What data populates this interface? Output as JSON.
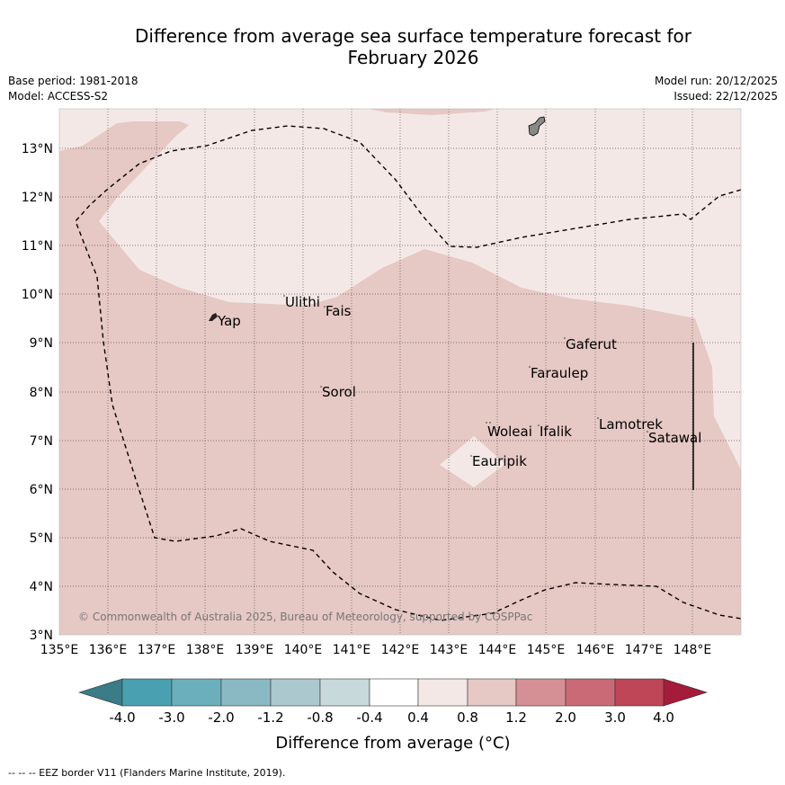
{
  "header": {
    "title_line1": "Difference from average sea surface temperature forecast for",
    "title_line2": "February 2026",
    "base_period": "Base period: 1981-2018",
    "model": "Model: ACCESS-S2",
    "model_run": "Model run: 20/12/2025",
    "issued": "Issued: 22/12/2025"
  },
  "map": {
    "lon_labels": [
      "135°E",
      "136°E",
      "137°E",
      "138°E",
      "139°E",
      "140°E",
      "141°E",
      "142°E",
      "143°E",
      "144°E",
      "145°E",
      "146°E",
      "147°E",
      "148°E"
    ],
    "lat_labels": [
      "13°N",
      "12°N",
      "11°N",
      "10°N",
      "9°N",
      "8°N",
      "7°N",
      "6°N",
      "5°N",
      "4°N",
      "3°N"
    ],
    "places": [
      {
        "name": "Ulithi"
      },
      {
        "name": "Fais"
      },
      {
        "name": "Yap"
      },
      {
        "name": "Gaferut"
      },
      {
        "name": "Faraulep"
      },
      {
        "name": "Sorol"
      },
      {
        "name": "Lamotrek"
      },
      {
        "name": "Satawal"
      },
      {
        "name": "Woleai"
      },
      {
        "name": "Ifalik"
      },
      {
        "name": "Eauripik"
      }
    ],
    "copyright": "© Commonwealth of Australia 2025, Bureau of Meteorology, supported by COSPPac",
    "colors": {
      "band_0_4_0_8": "#f4e8e6",
      "band_0_8_1_2": "#e6c8c4"
    }
  },
  "colorbar": {
    "ticks": [
      "-4.0",
      "-3.0",
      "-2.0",
      "-1.2",
      "-0.8",
      "-0.4",
      "0.4",
      "0.8",
      "1.2",
      "2.0",
      "3.0",
      "4.0"
    ],
    "colors": [
      "#3a7c88",
      "#49a0b0",
      "#6bafbc",
      "#8ab9c4",
      "#aac8ce",
      "#c8d9dc",
      "#ffffff",
      "#f4e8e6",
      "#e6c8c4",
      "#d59096",
      "#c96a76",
      "#be4656",
      "#a41c3a"
    ],
    "label": "Difference from average (°C)"
  },
  "footer": {
    "eez_note": "--  --  -- EEZ border V11 (Flanders Marine Institute, 2019)."
  }
}
